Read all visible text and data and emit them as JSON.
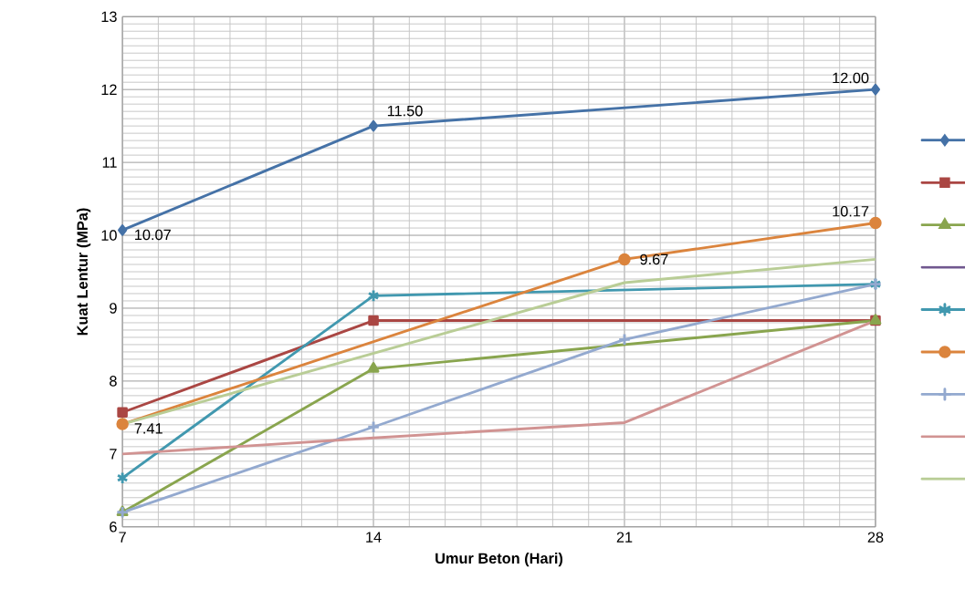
{
  "chart_data": {
    "type": "line",
    "xlabel": "Umur Beton (Hari)",
    "ylabel": "Kuat Lentur (MPa)",
    "xlim": [
      7,
      28
    ],
    "xticks": [
      7,
      14,
      21,
      28
    ],
    "ylim": [
      6,
      13
    ],
    "yticks": [
      6,
      7,
      8,
      9,
      10,
      11,
      12,
      13
    ],
    "grid": true,
    "line_style": "solid",
    "series": [
      {
        "color": "#4572a7",
        "marker": "diamond",
        "x": [
          7,
          14,
          28
        ],
        "values": [
          10.07,
          11.5,
          12.0
        ]
      },
      {
        "color": "#aa4643",
        "marker": "square",
        "x": [
          7,
          14,
          28
        ],
        "values": [
          7.57,
          8.83,
          8.83
        ]
      },
      {
        "color": "#89a54e",
        "marker": "triangle",
        "x": [
          7,
          14,
          28
        ],
        "values": [
          6.2,
          8.17,
          8.83
        ]
      },
      {
        "color": "#71588f",
        "values": [
          null,
          null,
          null,
          null
        ]
      },
      {
        "color": "#4198af",
        "marker": "cross",
        "x": [
          7,
          14,
          28
        ],
        "values": [
          6.67,
          9.17,
          9.33
        ]
      },
      {
        "color": "#db843d",
        "marker": "circle",
        "x": [
          7,
          21,
          28
        ],
        "values": [
          7.41,
          9.67,
          10.17
        ]
      },
      {
        "color": "#93a9cf",
        "marker": "plus",
        "x": [
          7,
          14,
          21,
          28
        ],
        "values": [
          6.2,
          7.37,
          8.57,
          9.33
        ]
      },
      {
        "color": "#d19392",
        "marker": "none",
        "x": [
          7,
          14,
          21,
          28
        ],
        "values": [
          7.0,
          7.22,
          7.43,
          8.83
        ]
      },
      {
        "color": "#b9cd96",
        "marker": "none",
        "x": [
          7,
          21,
          28
        ],
        "values": [
          7.41,
          9.35,
          9.67
        ]
      }
    ],
    "annotations": [
      {
        "text": "10.07",
        "x": 7,
        "y": 10.07
      },
      {
        "text": "11.50",
        "x": 14,
        "y": 11.5
      },
      {
        "text": "12.00",
        "x": 28,
        "y": 12.0
      },
      {
        "text": "10.17",
        "x": 28,
        "y": 10.17
      },
      {
        "text": "9.67",
        "x": 21,
        "y": 9.67
      },
      {
        "text": "7.41",
        "x": 7,
        "y": 7.41
      }
    ]
  }
}
